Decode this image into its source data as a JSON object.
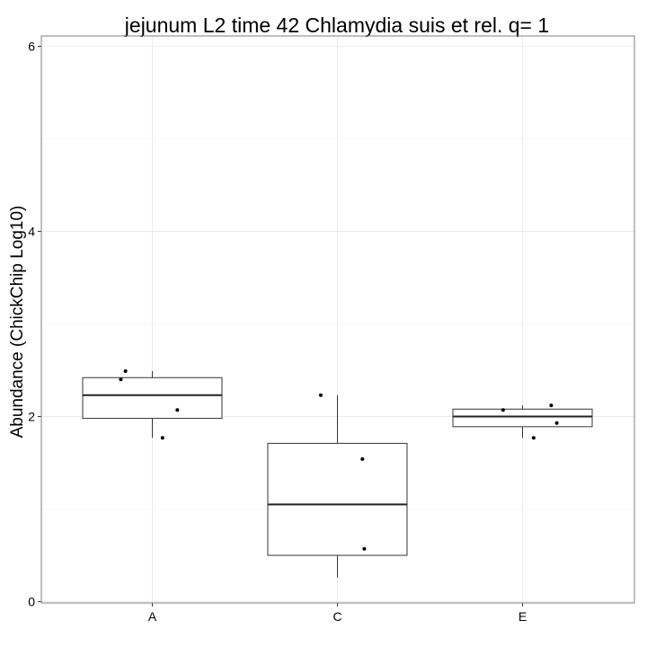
{
  "chart_data": {
    "type": "boxplot",
    "title": "jejunum L2 time 42 Chlamydia suis et rel. q= 1",
    "xlabel": "",
    "ylabel": "Abundance (ChickChip Log10)",
    "categories": [
      "A",
      "C",
      "E"
    ],
    "ylim": [
      0,
      6.1
    ],
    "yticks": [
      0,
      2,
      4,
      6
    ],
    "grid": true,
    "boxes": [
      {
        "category": "A",
        "whisker_low": 1.77,
        "q1": 1.98,
        "median": 2.23,
        "q3": 2.42,
        "whisker_high": 2.49
      },
      {
        "category": "C",
        "whisker_low": 0.26,
        "q1": 0.5,
        "median": 1.05,
        "q3": 1.71,
        "whisker_high": 2.23
      },
      {
        "category": "E",
        "whisker_low": 1.77,
        "q1": 1.89,
        "median": 2.0,
        "q3": 2.08,
        "whisker_high": 2.12
      }
    ],
    "points": [
      {
        "category": "A",
        "jitter": -0.34,
        "y": 2.4
      },
      {
        "category": "A",
        "jitter": -0.29,
        "y": 2.49
      },
      {
        "category": "A",
        "jitter": 0.11,
        "y": 1.77
      },
      {
        "category": "A",
        "jitter": 0.27,
        "y": 2.07
      },
      {
        "category": "C",
        "jitter": -0.18,
        "y": 2.23
      },
      {
        "category": "C",
        "jitter": 0.27,
        "y": 1.54
      },
      {
        "category": "C",
        "jitter": 0.29,
        "y": 0.57
      },
      {
        "category": "E",
        "jitter": -0.21,
        "y": 2.07
      },
      {
        "category": "E",
        "jitter": 0.12,
        "y": 1.77
      },
      {
        "category": "E",
        "jitter": 0.31,
        "y": 2.12
      },
      {
        "category": "E",
        "jitter": 0.37,
        "y": 1.93
      }
    ]
  }
}
